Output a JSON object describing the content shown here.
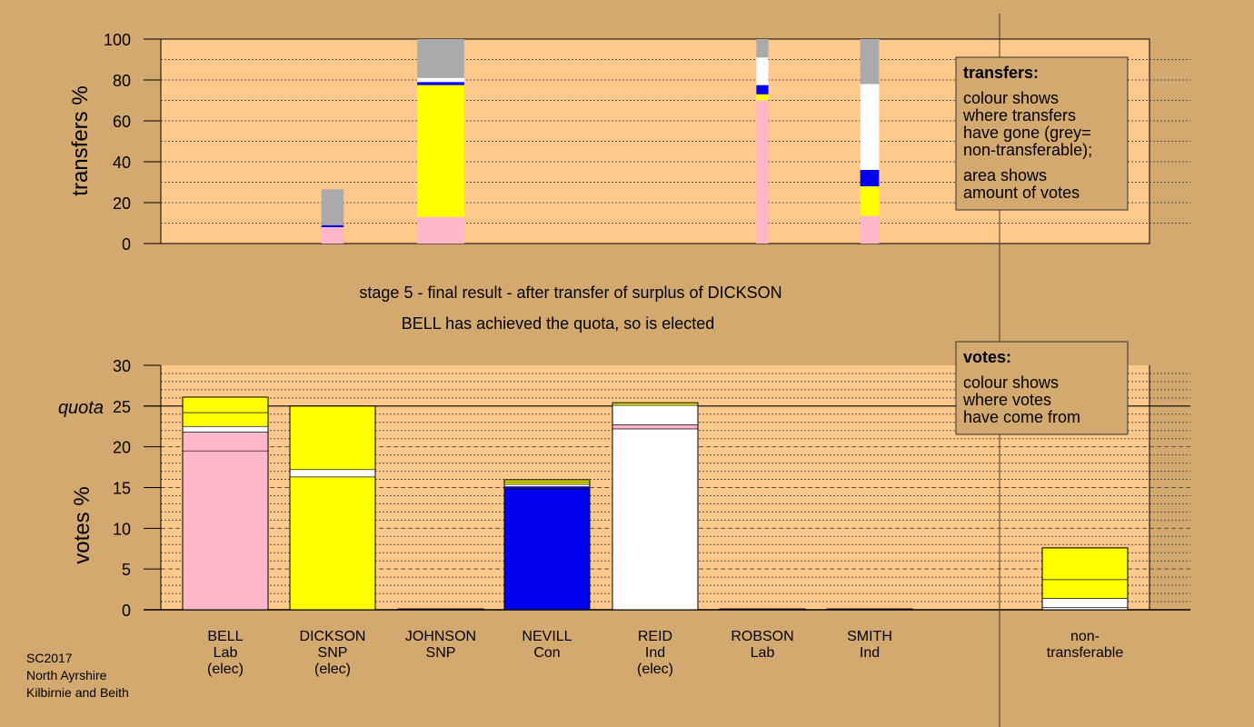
{
  "chart_data": [
    {
      "type": "bar",
      "id": "transfers",
      "ylabel": "transfers %",
      "ylim": [
        0,
        100
      ],
      "yticks": [
        0,
        20,
        40,
        60,
        80,
        100
      ],
      "grid": true,
      "categories": [
        "BELL",
        "DICKSON",
        "JOHNSON",
        "NEVILL",
        "REID",
        "ROBSON",
        "SMITH"
      ],
      "stacks": [
        {
          "category": "BELL",
          "segments": []
        },
        {
          "category": "DICKSON",
          "width_share": 0.26,
          "segments": [
            {
              "color": "#ffb6c8",
              "from": 0,
              "to": 8
            },
            {
              "color": "#0000ee",
              "from": 8,
              "to": 9
            },
            {
              "color": "#aaaaaa",
              "from": 9,
              "to": 26.5
            }
          ]
        },
        {
          "category": "JOHNSON",
          "width_share": 0.55,
          "segments": [
            {
              "color": "#ffb6c8",
              "from": 0,
              "to": 13
            },
            {
              "color": "#ffff00",
              "from": 13,
              "to": 77.5
            },
            {
              "color": "#0000ee",
              "from": 77.5,
              "to": 79
            },
            {
              "color": "#ffffff",
              "from": 79,
              "to": 81
            },
            {
              "color": "#aaaaaa",
              "from": 81,
              "to": 100
            }
          ]
        },
        {
          "category": "NEVILL",
          "segments": []
        },
        {
          "category": "REID",
          "segments": []
        },
        {
          "category": "ROBSON",
          "width_share": 0.14,
          "segments": [
            {
              "color": "#ffb6c8",
              "from": 0,
              "to": 70
            },
            {
              "color": "#ffff00",
              "from": 70,
              "to": 73
            },
            {
              "color": "#0000ee",
              "from": 73,
              "to": 77.5
            },
            {
              "color": "#ffffff",
              "from": 77.5,
              "to": 91
            },
            {
              "color": "#aaaaaa",
              "from": 91,
              "to": 100
            }
          ]
        },
        {
          "category": "SMITH",
          "width_share": 0.22,
          "segments": [
            {
              "color": "#ffb6c8",
              "from": 0,
              "to": 13.5
            },
            {
              "color": "#ffff00",
              "from": 13.5,
              "to": 28
            },
            {
              "color": "#0000ee",
              "from": 28,
              "to": 36
            },
            {
              "color": "#ffffff",
              "from": 36,
              "to": 78
            },
            {
              "color": "#aaaaaa",
              "from": 78,
              "to": 100
            }
          ]
        }
      ]
    },
    {
      "type": "bar",
      "id": "votes",
      "ylabel": "votes %",
      "ylim": [
        0,
        30
      ],
      "yticks": [
        0,
        5,
        10,
        15,
        20,
        25,
        30
      ],
      "quota": 25,
      "quota_label": "quota",
      "grid": true,
      "categories": [
        "BELL",
        "DICKSON",
        "JOHNSON",
        "NEVILL",
        "REID",
        "ROBSON",
        "SMITH",
        "non-transferable"
      ],
      "stacks": [
        {
          "category": "BELL",
          "segments": [
            {
              "color": "#ffb6c8",
              "from": 0,
              "to": 19.5
            },
            {
              "color": "#ffb6c8",
              "from": 19.5,
              "to": 21.8
            },
            {
              "color": "#ffffff",
              "from": 21.8,
              "to": 22.5
            },
            {
              "color": "#ffff00",
              "from": 22.5,
              "to": 24.2
            },
            {
              "color": "#ffff00",
              "from": 24.2,
              "to": 26.1
            }
          ]
        },
        {
          "category": "DICKSON",
          "segments": [
            {
              "color": "#ffff00",
              "from": 0,
              "to": 16.3
            },
            {
              "color": "#ffffff",
              "from": 16.3,
              "to": 17.2
            },
            {
              "color": "#ffff00",
              "from": 17.2,
              "to": 25
            }
          ]
        },
        {
          "category": "JOHNSON",
          "segments": [
            {
              "color": "#ffff00",
              "from": 0,
              "to": 0.1
            }
          ]
        },
        {
          "category": "NEVILL",
          "segments": [
            {
              "color": "#0000ee",
              "from": 0,
              "to": 14.8
            },
            {
              "color": "#0000ee",
              "from": 14.8,
              "to": 15.1
            },
            {
              "color": "#ffffff",
              "from": 15.1,
              "to": 15.4
            },
            {
              "color": "#ffff00",
              "from": 15.4,
              "to": 15.7
            },
            {
              "color": "#ffff00",
              "from": 15.7,
              "to": 15.95
            }
          ]
        },
        {
          "category": "REID",
          "segments": [
            {
              "color": "#ffffff",
              "from": 0,
              "to": 22.2
            },
            {
              "color": "#ffb6c8",
              "from": 22.2,
              "to": 22.7
            },
            {
              "color": "#ffffff",
              "from": 22.7,
              "to": 25.1
            },
            {
              "color": "#ffff00",
              "from": 25.1,
              "to": 25.4
            }
          ]
        },
        {
          "category": "ROBSON",
          "segments": [
            {
              "color": "#ffb6c8",
              "from": 0,
              "to": 0.1
            }
          ]
        },
        {
          "category": "SMITH",
          "segments": [
            {
              "color": "#ffffff",
              "from": 0,
              "to": 0.1
            }
          ]
        },
        {
          "category": "non-transferable",
          "segments": [
            {
              "color": "#ffffff",
              "from": 0,
              "to": 0.3
            },
            {
              "color": "#ffffff",
              "from": 0.3,
              "to": 1.4
            },
            {
              "color": "#ffff00",
              "from": 1.4,
              "to": 3.7
            },
            {
              "color": "#ffff00",
              "from": 3.7,
              "to": 7.6
            }
          ]
        }
      ]
    }
  ],
  "x_labels": [
    {
      "lines": [
        "BELL",
        "Lab",
        "(elec)"
      ]
    },
    {
      "lines": [
        "DICKSON",
        "SNP",
        "(elec)"
      ]
    },
    {
      "lines": [
        "JOHNSON",
        "SNP"
      ]
    },
    {
      "lines": [
        "NEVILL",
        "Con"
      ]
    },
    {
      "lines": [
        "REID",
        "Ind",
        "(elec)"
      ]
    },
    {
      "lines": [
        "ROBSON",
        "Lab"
      ]
    },
    {
      "lines": [
        "SMITH",
        "Ind"
      ]
    },
    {
      "lines": [
        "non-",
        "transferable"
      ]
    }
  ],
  "stage_title": "stage 5 - final result - after transfer of surplus of DICKSON",
  "stage_subtitle": "BELL has achieved the quota, so is elected",
  "legend_transfers": {
    "heading": "transfers:",
    "lines": [
      "colour shows",
      "where transfers",
      "have gone (grey=",
      "non-transferable);",
      "area shows",
      "amount of votes"
    ]
  },
  "legend_votes": {
    "heading": "votes:",
    "lines": [
      "colour shows",
      "where votes",
      "have come from"
    ]
  },
  "footer": [
    "SC2017",
    "North Ayrshire",
    "Kilbirnie and Beith"
  ],
  "colors": {
    "background": "#d4a96f",
    "plot_background": "#ffc98b",
    "Lab": "#ffb6c8",
    "SNP": "#ffff00",
    "Con": "#0000ee",
    "Ind": "#ffffff",
    "non-transferable": "#aaaaaa"
  }
}
